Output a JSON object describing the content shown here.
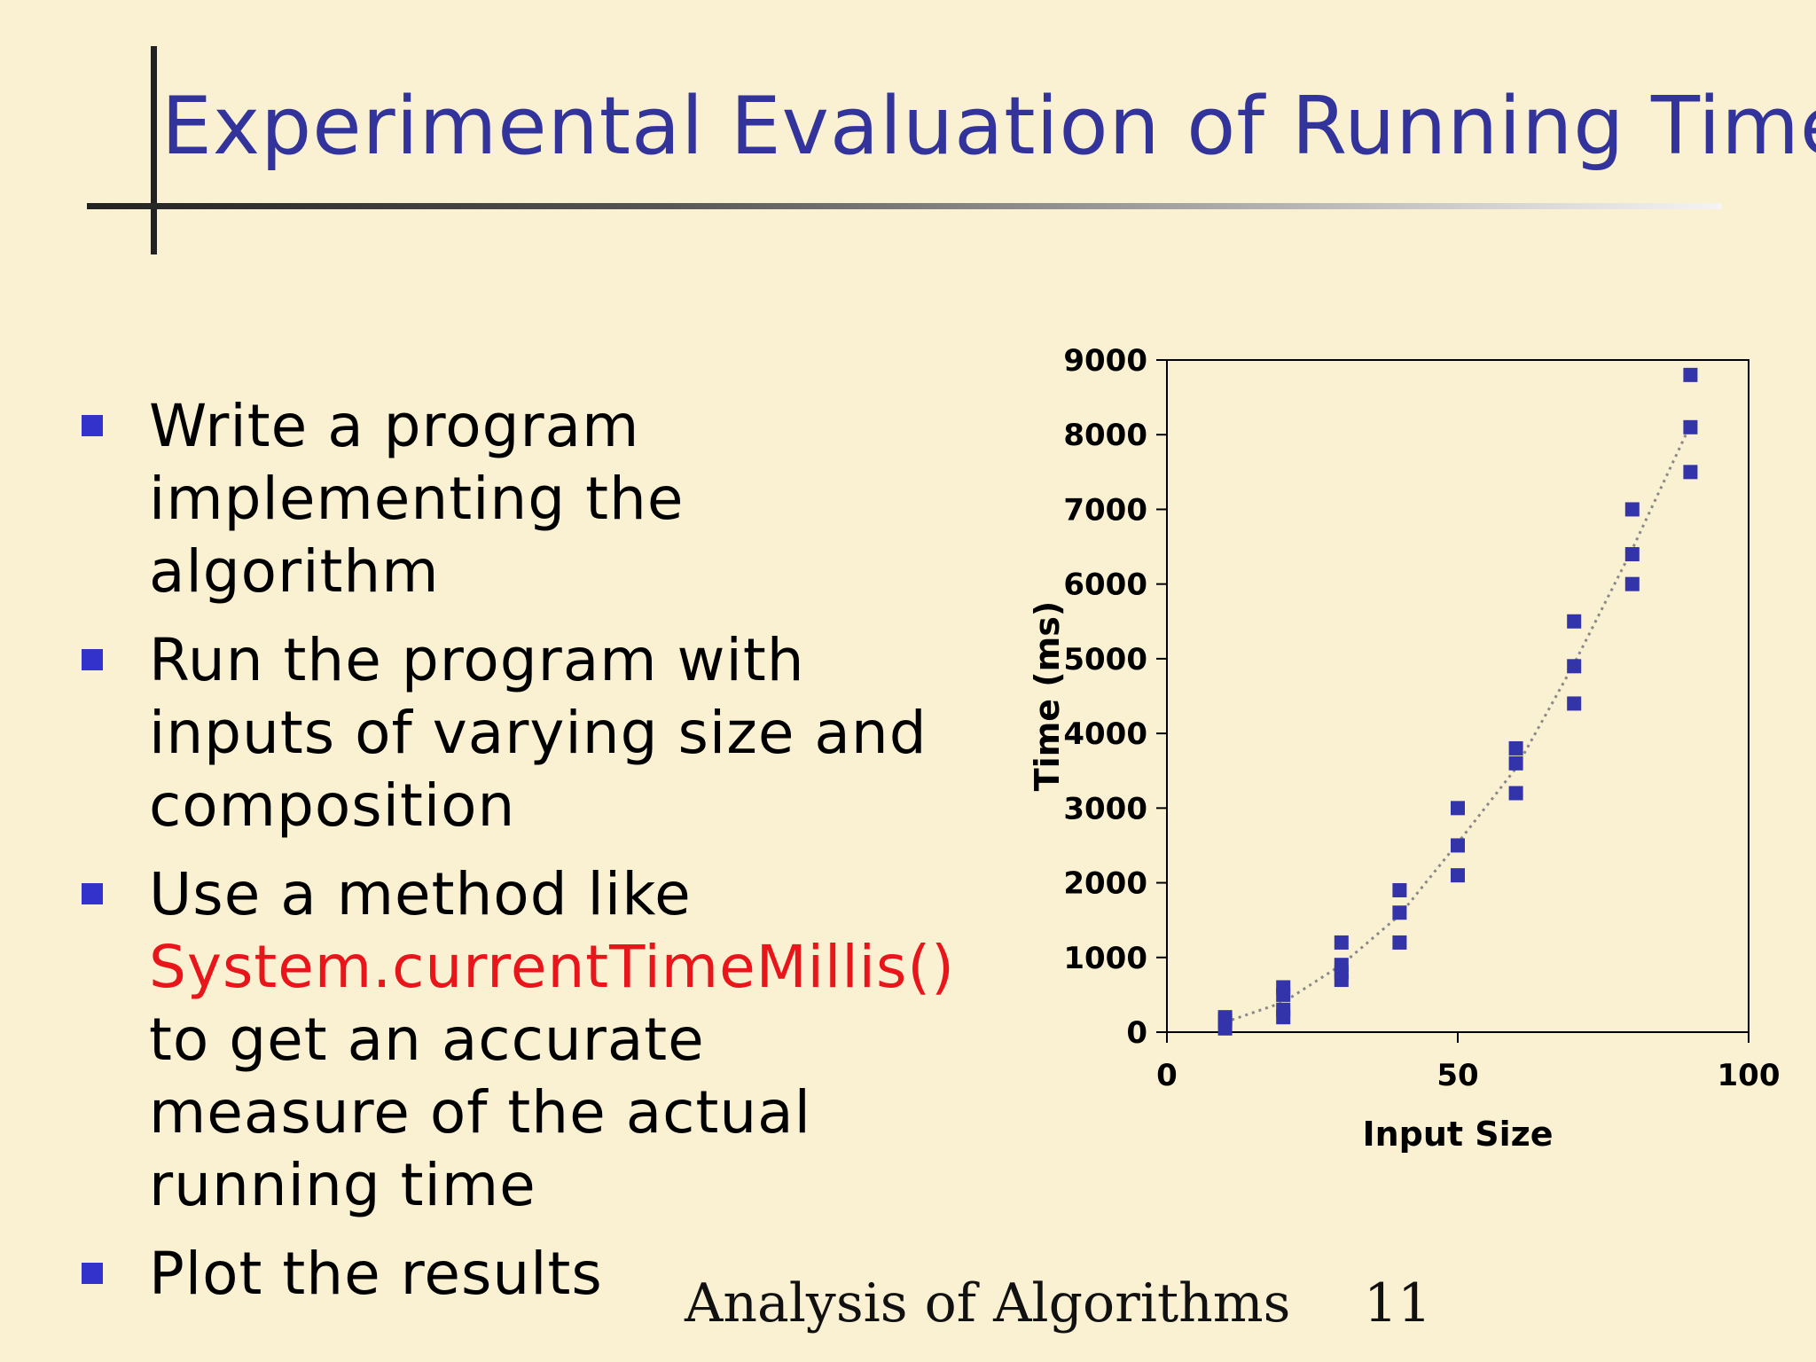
{
  "slide": {
    "title": "Experimental Evaluation of Running Time",
    "bullets": {
      "b1": "Write a program implementing the algorithm",
      "b2": "Run the program with inputs of varying size and composition",
      "b3_pre": "Use a method like ",
      "b3_code": "System.currentTimeMillis()",
      "b3_post": " to get an accurate measure of the actual running time",
      "b4": "Plot the results"
    },
    "footer": "Analysis of Algorithms",
    "page_number": "11"
  },
  "colors": {
    "background": "#faf1d2",
    "title": "#33339c",
    "bullet": "#3333cc",
    "code": "#e8161b",
    "marker": "#3333aa"
  },
  "chart_data": {
    "type": "scatter",
    "xlabel": "Input Size",
    "ylabel": "Time (ms)",
    "xlim": [
      0,
      100
    ],
    "ylim": [
      0,
      9000
    ],
    "xticks": [
      0,
      50,
      100
    ],
    "yticks": [
      0,
      1000,
      2000,
      3000,
      4000,
      5000,
      6000,
      7000,
      8000,
      9000
    ],
    "grid": false,
    "trendline": "dotted",
    "points": [
      {
        "x": 10,
        "y": 50
      },
      {
        "x": 10,
        "y": 150
      },
      {
        "x": 10,
        "y": 200
      },
      {
        "x": 20,
        "y": 200
      },
      {
        "x": 20,
        "y": 300
      },
      {
        "x": 20,
        "y": 500
      },
      {
        "x": 20,
        "y": 600
      },
      {
        "x": 30,
        "y": 700
      },
      {
        "x": 30,
        "y": 800
      },
      {
        "x": 30,
        "y": 900
      },
      {
        "x": 30,
        "y": 1200
      },
      {
        "x": 40,
        "y": 1200
      },
      {
        "x": 40,
        "y": 1600
      },
      {
        "x": 40,
        "y": 1900
      },
      {
        "x": 50,
        "y": 2100
      },
      {
        "x": 50,
        "y": 2500
      },
      {
        "x": 50,
        "y": 3000
      },
      {
        "x": 60,
        "y": 3200
      },
      {
        "x": 60,
        "y": 3600
      },
      {
        "x": 60,
        "y": 3800
      },
      {
        "x": 70,
        "y": 4400
      },
      {
        "x": 70,
        "y": 4900
      },
      {
        "x": 70,
        "y": 5500
      },
      {
        "x": 80,
        "y": 6000
      },
      {
        "x": 80,
        "y": 6400
      },
      {
        "x": 80,
        "y": 7000
      },
      {
        "x": 90,
        "y": 7500
      },
      {
        "x": 90,
        "y": 8100
      },
      {
        "x": 90,
        "y": 8800
      }
    ]
  }
}
